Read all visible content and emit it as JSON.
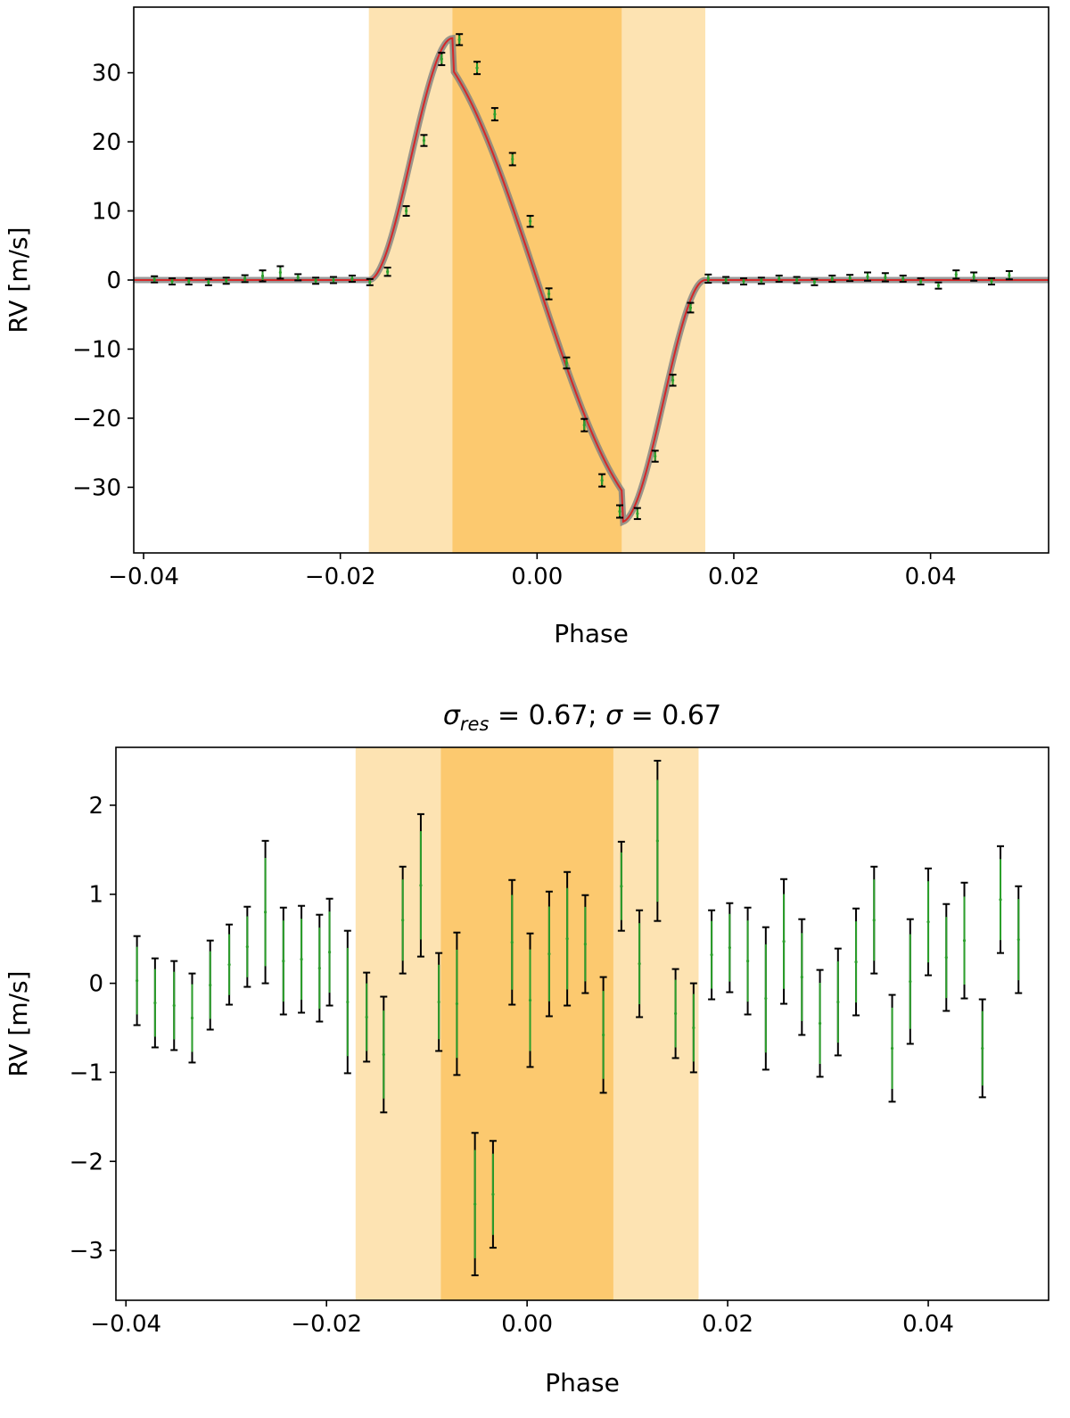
{
  "chart_data": [
    {
      "type": "scatter",
      "panel": "top",
      "title": "",
      "xlabel": "Phase",
      "ylabel": "RV [m/s]",
      "xlim": [
        -0.041,
        0.052
      ],
      "ylim": [
        -39.5,
        39.5
      ],
      "xticks": [
        -0.04,
        -0.02,
        0.0,
        0.02,
        0.04
      ],
      "xtick_labels": [
        "−0.04",
        "−0.02",
        "0.00",
        "0.02",
        "0.04"
      ],
      "yticks": [
        -30,
        -20,
        -10,
        0,
        10,
        20,
        30
      ],
      "ytick_labels": [
        "−30",
        "−20",
        "−10",
        "0",
        "10",
        "20",
        "30"
      ],
      "grid": false,
      "shaded_regions": [
        {
          "x": [
            -0.0171,
            0.0171
          ],
          "color": "#fde3b2"
        },
        {
          "x": [
            -0.0086,
            0.0086
          ],
          "color": "#fcc96f"
        }
      ],
      "model_curve": {
        "color": "#d62728",
        "band_color": "#808080",
        "amplitude": 35
      },
      "series": [
        {
          "marker_color": "#2ca02c",
          "errorbar_color": "#000000",
          "x": [
            -0.0389,
            -0.0371,
            -0.0354,
            -0.0334,
            -0.0316,
            -0.0297,
            -0.0279,
            -0.0261,
            -0.0243,
            -0.0225,
            -0.0207,
            -0.0188,
            -0.017,
            -0.0152,
            -0.0133,
            -0.0115,
            -0.0097,
            -0.0079,
            -0.0061,
            -0.0043,
            -0.0025,
            -0.0007,
            0.0012,
            0.003,
            0.0048,
            0.0066,
            0.0084,
            0.0102,
            0.012,
            0.0138,
            0.0156,
            0.0174,
            0.0192,
            0.021,
            0.0228,
            0.0246,
            0.0264,
            0.0282,
            0.03,
            0.0318,
            0.0336,
            0.0354,
            0.0372,
            0.039,
            0.0408,
            0.0426,
            0.0444,
            0.0462,
            0.048
          ],
          "y": [
            0.1,
            -0.2,
            -0.2,
            -0.3,
            -0.1,
            0.2,
            0.6,
            1.1,
            0.4,
            -0.1,
            0.0,
            0.2,
            -0.3,
            1.2,
            10.0,
            20.2,
            32.0,
            34.8,
            30.7,
            24.0,
            17.5,
            8.5,
            -2.0,
            -12.0,
            -21.0,
            -29.0,
            -33.5,
            -33.8,
            -25.5,
            -14.5,
            -4.0,
            0.2,
            0.0,
            -0.2,
            -0.1,
            0.2,
            0.0,
            -0.3,
            0.2,
            0.3,
            0.5,
            0.4,
            0.2,
            -0.2,
            -0.8,
            0.8,
            0.5,
            -0.2,
            0.7
          ],
          "yerr": [
            0.45,
            0.45,
            0.45,
            0.45,
            0.45,
            0.5,
            0.8,
            0.9,
            0.45,
            0.45,
            0.45,
            0.45,
            0.45,
            0.6,
            0.7,
            0.8,
            0.9,
            0.8,
            0.9,
            0.9,
            0.9,
            0.8,
            0.8,
            0.8,
            0.9,
            0.9,
            0.9,
            0.8,
            0.8,
            0.8,
            0.7,
            0.6,
            0.45,
            0.45,
            0.45,
            0.45,
            0.45,
            0.45,
            0.45,
            0.45,
            0.6,
            0.6,
            0.45,
            0.45,
            0.45,
            0.6,
            0.6,
            0.45,
            0.6
          ]
        }
      ]
    },
    {
      "type": "scatter",
      "panel": "bottom",
      "title_parts": [
        "σ",
        "res",
        " = 0.67; ",
        "σ",
        " = 0.67"
      ],
      "xlabel": "Phase",
      "ylabel": "RV [m/s]",
      "xlim": [
        -0.041,
        0.052
      ],
      "ylim": [
        -3.56,
        2.65
      ],
      "xticks": [
        -0.04,
        -0.02,
        0.0,
        0.02,
        0.04
      ],
      "xtick_labels": [
        "−0.04",
        "−0.02",
        "0.00",
        "0.02",
        "0.04"
      ],
      "yticks": [
        -3,
        -2,
        -1,
        0,
        1,
        2
      ],
      "ytick_labels": [
        "−3",
        "−2",
        "−1",
        "0",
        "1",
        "2"
      ],
      "grid": false,
      "shaded_regions": [
        {
          "x": [
            -0.0171,
            0.0171
          ],
          "color": "#fde3b2"
        },
        {
          "x": [
            -0.0086,
            0.0086
          ],
          "color": "#fcc96f"
        }
      ],
      "series": [
        {
          "marker_color": "#2ca02c",
          "errorbar_color": "#000000",
          "x": [
            -0.0389,
            -0.0371,
            -0.0352,
            -0.0334,
            -0.0316,
            -0.0297,
            -0.0279,
            -0.0261,
            -0.0243,
            -0.0225,
            -0.0207,
            -0.0197,
            -0.0179,
            -0.016,
            -0.0143,
            -0.0124,
            -0.0106,
            -0.0088,
            -0.007,
            -0.0052,
            -0.0034,
            -0.0015,
            0.0003,
            0.0022,
            0.004,
            0.0058,
            0.0076,
            0.0094,
            0.0112,
            0.013,
            0.0148,
            0.0166,
            0.0184,
            0.0202,
            0.022,
            0.0238,
            0.0256,
            0.0274,
            0.0292,
            0.031,
            0.0328,
            0.0346,
            0.0364,
            0.0382,
            0.04,
            0.0418,
            0.0436,
            0.0454,
            0.0472,
            0.049
          ],
          "y": [
            0.03,
            -0.22,
            -0.25,
            -0.39,
            -0.02,
            0.21,
            0.41,
            0.8,
            0.25,
            0.27,
            0.17,
            0.35,
            -0.21,
            -0.38,
            -0.8,
            0.71,
            1.1,
            -0.21,
            -0.23,
            -2.48,
            -2.37,
            0.46,
            -0.19,
            0.33,
            0.5,
            0.44,
            -0.58,
            1.09,
            0.22,
            1.6,
            -0.34,
            -0.5,
            0.32,
            0.4,
            0.25,
            -0.17,
            0.47,
            0.07,
            -0.45,
            -0.21,
            0.24,
            0.71,
            -0.73,
            0.02,
            0.69,
            0.29,
            0.48,
            -0.73,
            0.94,
            0.49
          ],
          "yerr": [
            0.5,
            0.5,
            0.5,
            0.5,
            0.5,
            0.45,
            0.45,
            0.8,
            0.6,
            0.6,
            0.6,
            0.6,
            0.8,
            0.5,
            0.65,
            0.6,
            0.8,
            0.55,
            0.8,
            0.8,
            0.6,
            0.7,
            0.75,
            0.7,
            0.75,
            0.55,
            0.65,
            0.5,
            0.6,
            0.9,
            0.5,
            0.5,
            0.5,
            0.5,
            0.6,
            0.8,
            0.7,
            0.65,
            0.6,
            0.6,
            0.6,
            0.6,
            0.6,
            0.7,
            0.6,
            0.6,
            0.65,
            0.55,
            0.6,
            0.6
          ]
        }
      ]
    }
  ]
}
